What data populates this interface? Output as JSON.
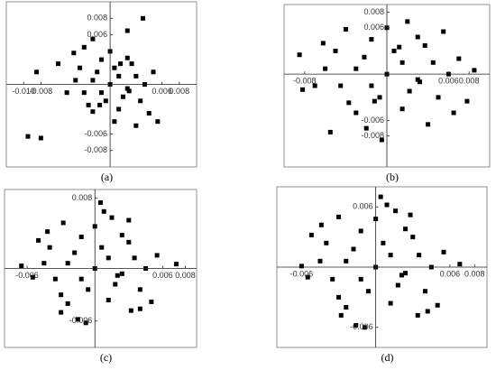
{
  "chart_data": [
    {
      "type": "scatter",
      "caption": "(a)",
      "color": "#000000",
      "xlim": [
        -0.012,
        0.01
      ],
      "ylim": [
        -0.01,
        0.01
      ],
      "xticks": [
        {
          "value": -0.01,
          "label": "-0.010"
        },
        -0.008,
        0.006,
        0.008
      ],
      "yticks": [
        -0.008,
        -0.006,
        0.006,
        0.008
      ],
      "x": [
        0,
        0.001,
        -0.001,
        0.002,
        -0.002,
        0.0005,
        -0.0005,
        0.0015,
        -0.0015,
        0.003,
        -0.003,
        0.0025,
        -0.0025,
        0.004,
        -0.004,
        0.001,
        -0.001,
        0.002,
        -0.002,
        0,
        0.0035,
        -0.0035,
        0.005,
        -0.005,
        0.0045,
        -0.006,
        0.0055,
        -0.0085,
        -0.0095,
        -0.008,
        0.0038,
        0.002,
        -0.002,
        0.003,
        -0.003,
        0.0005,
        0.0012,
        -0.0012,
        0.0022,
        -0.0042
      ],
      "y": [
        0,
        0.001,
        -0.001,
        -0.0005,
        0.0005,
        0.002,
        -0.002,
        -0.0015,
        0.0015,
        0.001,
        -0.001,
        0.0025,
        -0.0025,
        0,
        0.0005,
        -0.003,
        0.003,
        0.0032,
        -0.0033,
        0.004,
        -0.002,
        0.002,
        0.0015,
        -0.001,
        -0.0035,
        0.0025,
        -0.0045,
        0.0015,
        -0.0063,
        -0.0065,
        0.008,
        0.0065,
        0.0055,
        -0.005,
        0.0045,
        -0.0045,
        0.0025,
        -0.0025,
        -0.0008,
        0.0038
      ]
    },
    {
      "type": "scatter",
      "caption": "(b)",
      "color": "#000000",
      "xlim": [
        -0.01,
        0.01
      ],
      "ylim": [
        -0.012,
        0.009
      ],
      "xticks": [
        -0.008,
        0.006,
        0.008
      ],
      "yticks": [
        -0.008,
        -0.006,
        0.006,
        0.008
      ],
      "x": [
        0,
        0.0015,
        -0.0015,
        0.003,
        -0.003,
        0.0007,
        -0.0007,
        0.0022,
        -0.0022,
        0.0045,
        -0.0045,
        0.0037,
        -0.0037,
        0.006,
        -0.006,
        0.0015,
        -0.0015,
        0.003,
        -0.003,
        0,
        0.005,
        -0.005,
        0.007,
        -0.007,
        0.0065,
        -0.0085,
        0.0078,
        -0.0082,
        0.0085,
        -0.0055,
        0.0055,
        0.002,
        -0.002,
        0.004,
        -0.004,
        -0.0005,
        0.0012,
        -0.0012,
        0.0032,
        -0.0062
      ],
      "y": [
        0,
        0.0015,
        -0.0015,
        -0.0007,
        0.0007,
        0.003,
        -0.003,
        -0.0022,
        0.0022,
        0.0015,
        -0.0015,
        0.0037,
        -0.0037,
        0,
        0.0007,
        -0.0045,
        0.0045,
        0.0048,
        -0.005,
        0.006,
        -0.003,
        0.003,
        0.002,
        -0.0015,
        -0.005,
        0.0025,
        -0.0035,
        -0.002,
        0.0005,
        -0.0075,
        0.0055,
        0.0068,
        -0.007,
        -0.0065,
        0.0058,
        -0.0085,
        0.0035,
        -0.0035,
        -0.001,
        0.004
      ]
    },
    {
      "type": "scatter",
      "caption": "(c)",
      "color": "#000000",
      "xlim": [
        -0.008,
        0.009
      ],
      "ylim": [
        -0.009,
        0.009
      ],
      "xticks": [
        -0.006,
        0.006,
        0.008
      ],
      "yticks": [
        -0.006,
        0.008
      ],
      "x": [
        0,
        0.0012,
        -0.0012,
        0.0024,
        -0.0024,
        0.0006,
        -0.0006,
        0.0018,
        -0.0018,
        0.0035,
        -0.0035,
        0.003,
        -0.003,
        0.0045,
        -0.0045,
        0.0012,
        -0.0012,
        0.0024,
        -0.0024,
        0,
        0.004,
        -0.004,
        0.0055,
        -0.0055,
        0.005,
        -0.0065,
        0.0072,
        0.0032,
        -0.0028,
        0.004,
        -0.0042,
        0.0015,
        -0.0015,
        0.003,
        -0.003,
        0.0005,
        0.0008,
        -0.0008,
        0.002,
        -0.005
      ],
      "y": [
        0,
        0.0012,
        -0.0012,
        -0.0006,
        0.0006,
        0.0024,
        -0.0024,
        -0.0018,
        0.0018,
        0.0012,
        -0.0012,
        0.003,
        -0.003,
        0,
        0.0006,
        -0.0036,
        0.0036,
        0.0038,
        -0.004,
        0.0048,
        -0.0024,
        0.0024,
        0.0015,
        -0.001,
        -0.0038,
        0.0003,
        0.0005,
        -0.0048,
        0.0052,
        -0.0046,
        0.0042,
        0.0058,
        -0.0058,
        0.0055,
        -0.005,
        0.0075,
        0.0065,
        -0.0062,
        -0.0008,
        0.0032
      ]
    },
    {
      "type": "scatter",
      "caption": "(d)",
      "color": "#000000",
      "xlim": [
        -0.008,
        0.009
      ],
      "ylim": [
        -0.008,
        0.008
      ],
      "xticks": [
        -0.006,
        0.006,
        0.008
      ],
      "yticks": [
        -0.006,
        0.006
      ],
      "x": [
        0,
        0.0012,
        -0.0012,
        0.0024,
        -0.0024,
        0.0006,
        -0.0006,
        0.0018,
        -0.0018,
        0.0035,
        -0.0035,
        0.003,
        -0.003,
        0.0045,
        -0.0045,
        0.0012,
        -0.0012,
        0.0024,
        -0.0024,
        0,
        0.004,
        -0.004,
        0.0055,
        -0.0055,
        0.005,
        -0.006,
        0.0068,
        0.0034,
        -0.003,
        0.0042,
        -0.0044,
        0.0016,
        -0.0016,
        0.0028,
        -0.0028,
        0.0004,
        0.0009,
        -0.0009,
        0.0021,
        -0.0052
      ],
      "y": [
        0,
        0.0012,
        -0.0012,
        -0.0006,
        0.0006,
        0.0024,
        -0.0024,
        -0.0018,
        0.0018,
        0.0012,
        -0.0012,
        0.003,
        -0.003,
        0,
        0.0006,
        -0.0036,
        0.0036,
        0.0038,
        -0.004,
        0.0048,
        -0.0024,
        0.0024,
        0.0015,
        -0.001,
        -0.0038,
        0.0001,
        0.0003,
        -0.0048,
        0.005,
        -0.0044,
        0.0042,
        0.0056,
        -0.0058,
        0.0052,
        -0.0048,
        0.007,
        0.0062,
        -0.006,
        -0.0008,
        0.0032
      ]
    }
  ]
}
